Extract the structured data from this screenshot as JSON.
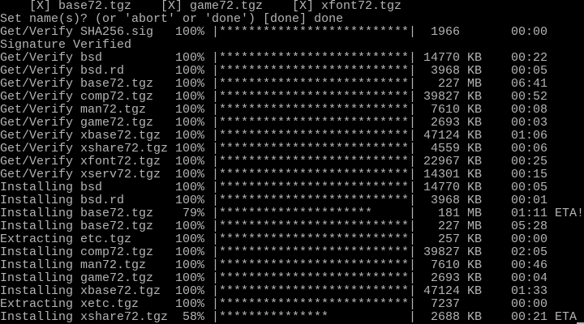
{
  "console": {
    "selected_sets": [
      "[X] base72.tgz",
      "[X] game72.tgz",
      "[X] xfont72.tgz"
    ],
    "prompt": "Set name(s)? (or 'abort' or 'done') [done] done",
    "lines": [
      {
        "type": "progress",
        "label": "Get/Verify SHA256.sig",
        "percent": 100,
        "size": "1966",
        "unit": "",
        "time": "00:00",
        "eta": ""
      },
      {
        "type": "text",
        "text": "Signature Verified"
      },
      {
        "type": "progress",
        "label": "Get/Verify bsd",
        "percent": 100,
        "size": "14770",
        "unit": "KB",
        "time": "00:22",
        "eta": ""
      },
      {
        "type": "progress",
        "label": "Get/Verify bsd.rd",
        "percent": 100,
        "size": "3968",
        "unit": "KB",
        "time": "00:05",
        "eta": ""
      },
      {
        "type": "progress",
        "label": "Get/Verify base72.tgz",
        "percent": 100,
        "size": "227",
        "unit": "MB",
        "time": "06:41",
        "eta": ""
      },
      {
        "type": "progress",
        "label": "Get/Verify comp72.tgz",
        "percent": 100,
        "size": "39827",
        "unit": "KB",
        "time": "00:52",
        "eta": ""
      },
      {
        "type": "progress",
        "label": "Get/Verify man72.tgz",
        "percent": 100,
        "size": "7610",
        "unit": "KB",
        "time": "00:08",
        "eta": ""
      },
      {
        "type": "progress",
        "label": "Get/Verify game72.tgz",
        "percent": 100,
        "size": "2693",
        "unit": "KB",
        "time": "00:03",
        "eta": ""
      },
      {
        "type": "progress",
        "label": "Get/Verify xbase72.tgz",
        "percent": 100,
        "size": "47124",
        "unit": "KB",
        "time": "01:06",
        "eta": ""
      },
      {
        "type": "progress",
        "label": "Get/Verify xshare72.tgz",
        "percent": 100,
        "size": "4559",
        "unit": "KB",
        "time": "00:06",
        "eta": ""
      },
      {
        "type": "progress",
        "label": "Get/Verify xfont72.tgz",
        "percent": 100,
        "size": "22967",
        "unit": "KB",
        "time": "00:25",
        "eta": ""
      },
      {
        "type": "progress",
        "label": "Get/Verify xserv72.tgz",
        "percent": 100,
        "size": "14301",
        "unit": "KB",
        "time": "00:15",
        "eta": ""
      },
      {
        "type": "progress",
        "label": "Installing bsd",
        "percent": 100,
        "size": "14770",
        "unit": "KB",
        "time": "00:05",
        "eta": ""
      },
      {
        "type": "progress",
        "label": "Installing bsd.rd",
        "percent": 100,
        "size": "3968",
        "unit": "KB",
        "time": "00:01",
        "eta": ""
      },
      {
        "type": "progress",
        "label": "Installing base72.tgz",
        "percent": 79,
        "size": "181",
        "unit": "MB",
        "time": "01:11",
        "eta": "ETA!"
      },
      {
        "type": "progress",
        "label": "Installing base72.tgz",
        "percent": 100,
        "size": "227",
        "unit": "MB",
        "time": "05:28",
        "eta": ""
      },
      {
        "type": "progress",
        "label": "Extracting etc.tgz",
        "percent": 100,
        "size": "257",
        "unit": "KB",
        "time": "00:00",
        "eta": ""
      },
      {
        "type": "progress",
        "label": "Installing comp72.tgz",
        "percent": 100,
        "size": "39827",
        "unit": "KB",
        "time": "02:05",
        "eta": ""
      },
      {
        "type": "progress",
        "label": "Installing man72.tgz",
        "percent": 100,
        "size": "7610",
        "unit": "KB",
        "time": "00:46",
        "eta": ""
      },
      {
        "type": "progress",
        "label": "Installing game72.tgz",
        "percent": 100,
        "size": "2693",
        "unit": "KB",
        "time": "00:04",
        "eta": ""
      },
      {
        "type": "progress",
        "label": "Installing xbase72.tgz",
        "percent": 100,
        "size": "47124",
        "unit": "KB",
        "time": "01:33",
        "eta": ""
      },
      {
        "type": "progress",
        "label": "Extracting xetc.tgz",
        "percent": 100,
        "size": "7237",
        "unit": "",
        "time": "00:00",
        "eta": ""
      },
      {
        "type": "progress",
        "label": "Installing xshare72.tgz",
        "percent": 58,
        "size": "2688",
        "unit": "KB",
        "time": "00:21",
        "eta": "ETA"
      }
    ]
  }
}
